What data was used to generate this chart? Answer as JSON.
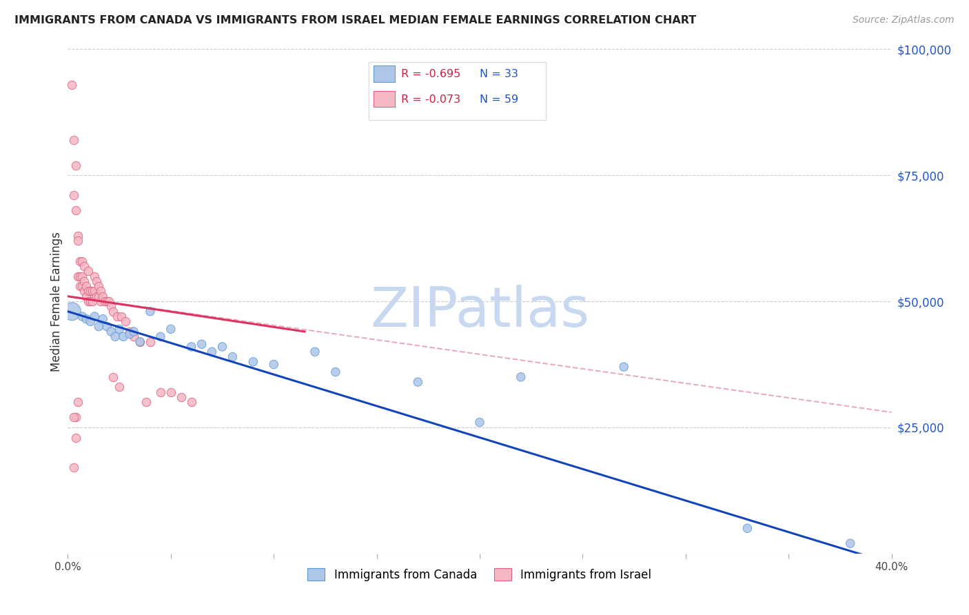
{
  "title": "IMMIGRANTS FROM CANADA VS IMMIGRANTS FROM ISRAEL MEDIAN FEMALE EARNINGS CORRELATION CHART",
  "source": "Source: ZipAtlas.com",
  "ylabel": "Median Female Earnings",
  "xlim": [
    0.0,
    0.4
  ],
  "ylim": [
    0,
    100000
  ],
  "xtick_vals": [
    0.0,
    0.05,
    0.1,
    0.15,
    0.2,
    0.25,
    0.3,
    0.35,
    0.4
  ],
  "xtick_show_labels": [
    0.0,
    0.4
  ],
  "ytick_vals": [
    25000,
    50000,
    75000,
    100000
  ],
  "ytick_labels": [
    "$25,000",
    "$50,000",
    "$75,000",
    "$100,000"
  ],
  "canada_color": "#aec6e8",
  "canada_edge": "#5b9bd5",
  "israel_color": "#f4b8c4",
  "israel_edge": "#e06080",
  "canada_R": -0.695,
  "canada_N": 33,
  "israel_R": -0.073,
  "israel_N": 59,
  "legend_label_canada": "Immigrants from Canada",
  "legend_label_israel": "Immigrants from Israel",
  "watermark": "ZIPatlas",
  "watermark_color": "#c8d8f0",
  "title_color": "#222222",
  "axis_label_color": "#333333",
  "ytick_color": "#2255cc",
  "legend_R_color": "#cc2244",
  "legend_N_color": "#2255cc",
  "canada_line_color": "#1144bb",
  "israel_line_color": "#e03060",
  "dashed_line_color": "#e090a8",
  "canada_line_x0": 0.0,
  "canada_line_y0": 48000,
  "canada_line_x1": 0.4,
  "canada_line_y1": -2000,
  "israel_line_x0": 0.0,
  "israel_line_y0": 51000,
  "israel_line_x1": 0.115,
  "israel_line_y1": 44000,
  "dashed_line_x0": 0.0,
  "dashed_line_y0": 51000,
  "dashed_line_x1": 0.4,
  "dashed_line_y1": 28000,
  "canada_scatter_x": [
    0.002,
    0.007,
    0.009,
    0.011,
    0.013,
    0.015,
    0.017,
    0.019,
    0.021,
    0.023,
    0.025,
    0.027,
    0.03,
    0.032,
    0.035,
    0.04,
    0.045,
    0.05,
    0.06,
    0.065,
    0.07,
    0.075,
    0.08,
    0.09,
    0.1,
    0.12,
    0.13,
    0.17,
    0.2,
    0.22,
    0.27,
    0.33,
    0.38
  ],
  "canada_scatter_y": [
    48000,
    47000,
    46500,
    46000,
    47000,
    45000,
    46500,
    45000,
    44000,
    43000,
    44500,
    43000,
    43500,
    44000,
    42000,
    48000,
    43000,
    44500,
    41000,
    41500,
    40000,
    41000,
    39000,
    38000,
    37500,
    40000,
    36000,
    34000,
    26000,
    35000,
    37000,
    5000,
    2000
  ],
  "canada_scatter_size": [
    350,
    80,
    80,
    80,
    80,
    80,
    80,
    80,
    80,
    80,
    80,
    80,
    80,
    80,
    80,
    80,
    80,
    80,
    80,
    80,
    80,
    80,
    80,
    80,
    80,
    80,
    80,
    80,
    80,
    80,
    80,
    80,
    80
  ],
  "israel_scatter_x": [
    0.002,
    0.003,
    0.004,
    0.005,
    0.005,
    0.006,
    0.006,
    0.007,
    0.007,
    0.008,
    0.008,
    0.009,
    0.009,
    0.01,
    0.01,
    0.011,
    0.011,
    0.012,
    0.012,
    0.013,
    0.013,
    0.014,
    0.014,
    0.015,
    0.015,
    0.016,
    0.016,
    0.017,
    0.018,
    0.019,
    0.02,
    0.021,
    0.022,
    0.024,
    0.026,
    0.028,
    0.03,
    0.032,
    0.035,
    0.038,
    0.04,
    0.045,
    0.05,
    0.055,
    0.06,
    0.003,
    0.004,
    0.005,
    0.006,
    0.007,
    0.008,
    0.01,
    0.005,
    0.004,
    0.003,
    0.004,
    0.003,
    0.022,
    0.025
  ],
  "israel_scatter_y": [
    93000,
    82000,
    77000,
    63000,
    55000,
    55000,
    53000,
    55000,
    53000,
    54000,
    52000,
    53000,
    51000,
    52000,
    50000,
    52000,
    50000,
    52000,
    50000,
    55000,
    52000,
    54000,
    51000,
    53000,
    51000,
    52000,
    50000,
    51000,
    50000,
    50000,
    50000,
    49000,
    48000,
    47000,
    47000,
    46000,
    44000,
    43000,
    42000,
    30000,
    42000,
    32000,
    32000,
    31000,
    30000,
    71000,
    68000,
    62000,
    58000,
    58000,
    57000,
    56000,
    30000,
    27000,
    27000,
    23000,
    17000,
    35000,
    33000
  ]
}
